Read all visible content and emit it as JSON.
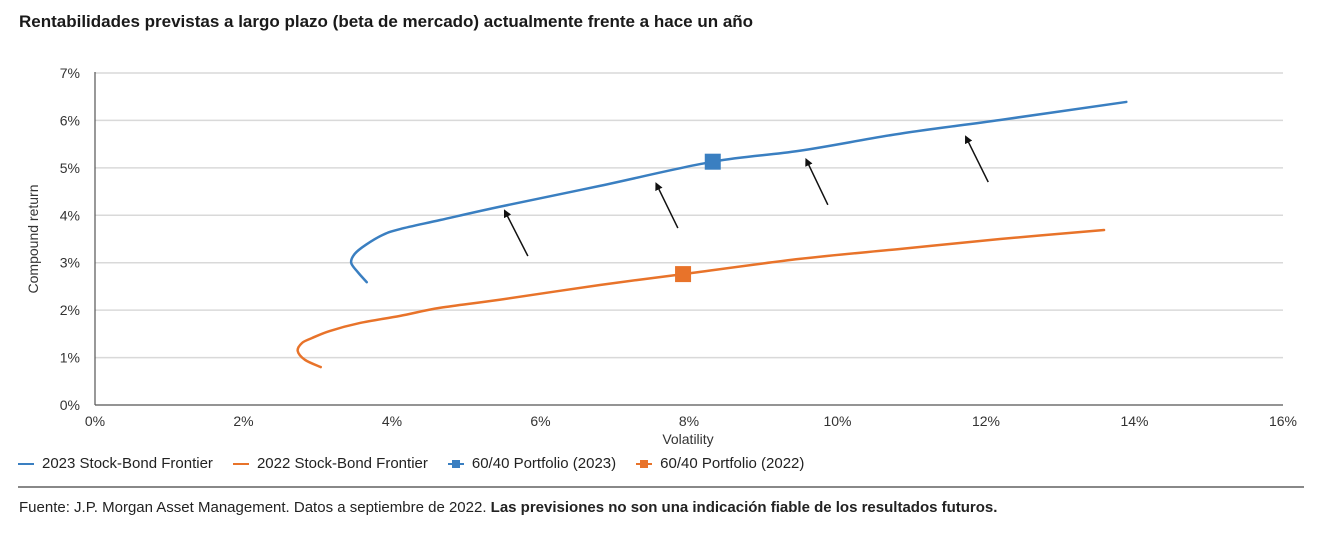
{
  "title": "Rentabilidades previstas a largo plazo (beta de mercado) actualmente frente a hace un año",
  "chart_data": {
    "type": "line",
    "title": "Rentabilidades previstas a largo plazo (beta de mercado) actualmente frente a hace un año",
    "xlabel": "Volatility",
    "ylabel": "Compound return",
    "xlim": [
      0,
      16
    ],
    "ylim": [
      0,
      7
    ],
    "xticks": [
      0,
      2,
      4,
      6,
      8,
      10,
      12,
      14,
      16
    ],
    "yticks": [
      0,
      1,
      2,
      3,
      4,
      5,
      6,
      7
    ],
    "xtick_labels": [
      "0%",
      "2%",
      "4%",
      "6%",
      "8%",
      "10%",
      "12%",
      "14%",
      "16%"
    ],
    "ytick_labels": [
      "0%",
      "1%",
      "2%",
      "3%",
      "4%",
      "5%",
      "6%",
      "7%"
    ],
    "grid": "horizontal",
    "legend_position": "bottom-left",
    "series": [
      {
        "name": "2023 Stock-Bond Frontier",
        "kind": "line",
        "color": "#3A7FC1",
        "x": [
          3.66,
          3.54,
          3.45,
          3.5,
          3.65,
          3.88,
          4.11,
          4.65,
          5.45,
          6.8,
          8.32,
          9.49,
          10.84,
          12.19,
          13.89
        ],
        "y": [
          2.59,
          2.8,
          3.0,
          3.19,
          3.38,
          3.59,
          3.71,
          3.9,
          4.18,
          4.62,
          5.13,
          5.36,
          5.72,
          6.01,
          6.39
        ]
      },
      {
        "name": "2022 Stock-Bond Frontier",
        "kind": "line",
        "color": "#E8732A",
        "x": [
          3.04,
          2.83,
          2.73,
          2.79,
          2.92,
          3.16,
          3.57,
          4.11,
          4.65,
          5.45,
          6.8,
          7.92,
          9.49,
          10.84,
          12.19,
          13.59
        ],
        "y": [
          0.8,
          0.95,
          1.14,
          1.31,
          1.41,
          1.56,
          1.73,
          1.88,
          2.05,
          2.22,
          2.53,
          2.76,
          3.08,
          3.29,
          3.5,
          3.69
        ]
      },
      {
        "name": "60/40 Portfolio (2023)",
        "kind": "marker",
        "color": "#3A7FC1",
        "x": [
          8.32
        ],
        "y": [
          5.13
        ]
      },
      {
        "name": "60/40 Portfolio (2022)",
        "kind": "marker",
        "color": "#E8732A",
        "x": [
          7.92
        ],
        "y": [
          2.76
        ]
      }
    ],
    "annotations": [
      {
        "type": "arrow",
        "from": [
          5.83,
          3.14
        ],
        "to": [
          5.52,
          4.09
        ]
      },
      {
        "type": "arrow",
        "from": [
          7.85,
          3.73
        ],
        "to": [
          7.56,
          4.66
        ]
      },
      {
        "type": "arrow",
        "from": [
          9.87,
          4.22
        ],
        "to": [
          9.58,
          5.17
        ]
      },
      {
        "type": "arrow",
        "from": [
          12.03,
          4.7
        ],
        "to": [
          11.73,
          5.65
        ]
      }
    ]
  },
  "legend": [
    {
      "label": "2023 Stock-Bond Frontier",
      "kind": "line",
      "color": "#3A7FC1"
    },
    {
      "label": "2022 Stock-Bond Frontier",
      "kind": "line",
      "color": "#E8732A"
    },
    {
      "label": "60/40 Portfolio (2023)",
      "kind": "marker",
      "color": "#3A7FC1"
    },
    {
      "label": "60/40 Portfolio (2022)",
      "kind": "marker",
      "color": "#E8732A"
    }
  ],
  "footer": {
    "source": "Fuente: J.P. Morgan Asset Management. Datos a septiembre de 2022. ",
    "disclaimer": "Las previsiones no son una indicación fiable de los resultados futuros."
  }
}
